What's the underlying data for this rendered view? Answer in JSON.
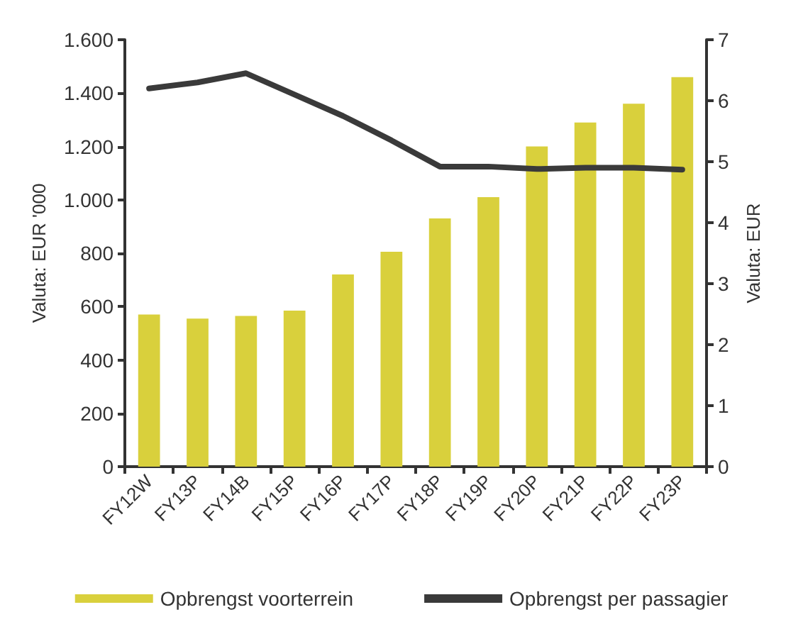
{
  "chart_data": {
    "type": "bar",
    "categories": [
      "FY12W",
      "FY13P",
      "FY14B",
      "FY15P",
      "FY16P",
      "FY17P",
      "FY18P",
      "FY19P",
      "FY20P",
      "FY21P",
      "FY22P",
      "FY23P"
    ],
    "series": [
      {
        "name": "Opbrengst voorterrein",
        "color": "#d9d03c",
        "values": [
          570,
          555,
          565,
          585,
          720,
          805,
          930,
          1010,
          1200,
          1290,
          1360,
          1460
        ]
      },
      {
        "name": "Opbrengst per passagier",
        "type": "line",
        "axis": "y2",
        "color": "#3a3a3a",
        "values": [
          6.2,
          6.3,
          6.45,
          6.1,
          5.75,
          5.35,
          4.92,
          4.92,
          4.88,
          4.9,
          4.9,
          4.87
        ]
      }
    ],
    "ylabel": "Valuta: EUR '000",
    "y2label": "Valuta: EUR",
    "ylim": [
      0,
      1600
    ],
    "yticks": [
      {
        "value": 0,
        "label": "0"
      },
      {
        "value": 200,
        "label": "200"
      },
      {
        "value": 400,
        "label": "400"
      },
      {
        "value": 600,
        "label": "600"
      },
      {
        "value": 800,
        "label": "800"
      },
      {
        "value": 1000,
        "label": "1.000"
      },
      {
        "value": 1200,
        "label": "1.200"
      },
      {
        "value": 1400,
        "label": "1.400"
      },
      {
        "value": 1600,
        "label": "1.600"
      }
    ],
    "y2lim": [
      0,
      7
    ],
    "y2ticks": [
      0,
      1,
      2,
      3,
      4,
      5,
      6,
      7
    ],
    "grid": false,
    "legend": "bottom",
    "marker": "none",
    "line_style": "solid"
  }
}
